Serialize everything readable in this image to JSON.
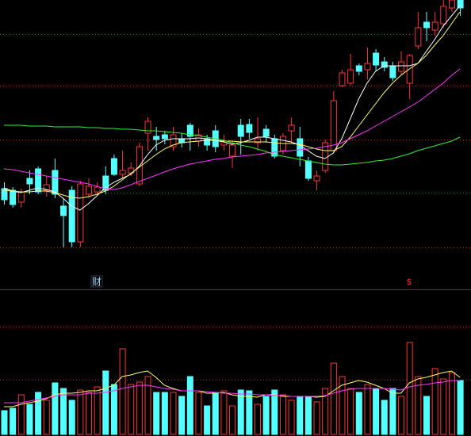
{
  "chart_data": [
    {
      "type": "candlestick",
      "ylim": [
        0,
        345
      ],
      "up_color": "#ff3232",
      "down_color": "#54ffff",
      "annotations": [
        {
          "text": "财",
          "color": "#9ad6ff"
        },
        {
          "text": "$",
          "color": "#ff3232"
        }
      ],
      "open": [
        107,
        105,
        90,
        120,
        132,
        105,
        130,
        85,
        105,
        40,
        100,
        103,
        123,
        145,
        125,
        127,
        113,
        177,
        173,
        175,
        160,
        170,
        187,
        167,
        170,
        180,
        162,
        148,
        187,
        188,
        165,
        182,
        170,
        155,
        180,
        170,
        142,
        117,
        130,
        155,
        237,
        240,
        262,
        257,
        278,
        267,
        262,
        255,
        240,
        287,
        317,
        307,
        315,
        335,
        345
      ],
      "high": [
        115,
        109,
        107,
        130,
        135,
        123,
        145,
        95,
        110,
        117,
        120,
        115,
        135,
        150,
        155,
        140,
        165,
        197,
        185,
        180,
        185,
        177,
        190,
        183,
        175,
        187,
        175,
        167,
        195,
        195,
        197,
        187,
        175,
        177,
        197,
        185,
        147,
        130,
        169,
        230,
        257,
        277,
        265,
        285,
        283,
        273,
        267,
        280,
        277,
        330,
        330,
        330,
        345,
        345,
        345
      ],
      "low": [
        87,
        83,
        83,
        100,
        100,
        97,
        95,
        33,
        33,
        33,
        95,
        99,
        100,
        123,
        120,
        123,
        110,
        155,
        155,
        163,
        155,
        159,
        155,
        160,
        155,
        153,
        155,
        133,
        150,
        170,
        155,
        165,
        145,
        150,
        165,
        135,
        117,
        105,
        127,
        153,
        235,
        237,
        250,
        245,
        255,
        255,
        243,
        250,
        220,
        283,
        293,
        300,
        310,
        330,
        325
      ],
      "close": [
        93,
        87,
        103,
        113,
        103,
        112,
        100,
        73,
        40,
        113,
        110,
        109,
        105,
        125,
        130,
        133,
        160,
        192,
        169,
        170,
        175,
        165,
        173,
        175,
        162,
        160,
        167,
        162,
        173,
        178,
        170,
        173,
        148,
        173,
        187,
        148,
        120,
        123,
        165,
        218,
        253,
        257,
        255,
        265,
        263,
        260,
        247,
        267,
        275,
        310,
        310,
        317,
        337,
        345,
        335
      ],
      "series": [
        {
          "color": "#ffffff",
          "values": [
            108,
            104,
            102,
            105,
            108,
            106,
            103,
            95,
            85,
            80,
            88,
            98,
            108,
            115,
            120,
            125,
            135,
            150,
            162,
            168,
            170,
            170,
            170,
            171,
            170,
            168,
            166,
            163,
            165,
            168,
            172,
            172,
            170,
            168,
            166,
            162,
            155,
            148,
            145,
            152,
            170,
            195,
            220,
            240,
            255,
            262,
            262,
            262,
            262,
            265,
            280,
            295,
            312,
            325,
            338
          ]
        },
        {
          "color": "#ffff66",
          "values": [
            105,
            104,
            103,
            103,
            104,
            104,
            102,
            99,
            96,
            95,
            97,
            100,
            104,
            110,
            118,
            126,
            134,
            142,
            150,
            157,
            162,
            165,
            166,
            167,
            168,
            168,
            167,
            167,
            166,
            166,
            166,
            166,
            165,
            164,
            164,
            163,
            160,
            157,
            155,
            155,
            160,
            172,
            186,
            200,
            214,
            228,
            240,
            250,
            258,
            265,
            275,
            288,
            300,
            315,
            330
          ]
        },
        {
          "color": "#ff33ff",
          "values": [
            132,
            131,
            129,
            127,
            125,
            123,
            121,
            119,
            117,
            115,
            113,
            110,
            107,
            106,
            108,
            112,
            116,
            120,
            124,
            128,
            132,
            135,
            138,
            140,
            142,
            144,
            145,
            147,
            148,
            149,
            150,
            152,
            153,
            154,
            155,
            156,
            157,
            158,
            160,
            162,
            165,
            170,
            175,
            180,
            186,
            192,
            198,
            204,
            210,
            216,
            224,
            232,
            240,
            250,
            258
          ]
        },
        {
          "color": "#33ee33",
          "values": [
            187,
            187,
            187,
            186,
            186,
            186,
            185,
            185,
            185,
            185,
            184,
            184,
            183,
            183,
            182,
            182,
            181,
            180,
            180,
            179,
            178,
            177,
            175,
            174,
            172,
            170,
            168,
            165,
            162,
            160,
            157,
            154,
            150,
            148,
            146,
            144,
            142,
            140,
            138,
            137,
            137,
            138,
            139,
            140,
            142,
            143,
            145,
            148,
            151,
            155,
            158,
            161,
            164,
            167,
            172
          ]
        }
      ]
    },
    {
      "type": "bar",
      "ylim": [
        0,
        183
      ],
      "values": [
        30,
        33,
        50,
        38,
        53,
        43,
        65,
        58,
        43,
        56,
        53,
        60,
        80,
        63,
        108,
        63,
        66,
        73,
        53,
        53,
        53,
        48,
        73,
        53,
        36,
        53,
        55,
        36,
        56,
        55,
        38,
        48,
        56,
        50,
        43,
        48,
        48,
        41,
        58,
        90,
        73,
        58,
        53,
        63,
        58,
        43,
        58,
        48,
        116,
        73,
        48,
        83,
        70,
        78,
        68
      ],
      "series": [
        {
          "color": "#ffff66",
          "values": [
            35,
            35,
            38,
            40,
            42,
            45,
            50,
            52,
            52,
            53,
            55,
            55,
            58,
            62,
            73,
            75,
            78,
            80,
            72,
            62,
            58,
            55,
            55,
            55,
            52,
            52,
            53,
            50,
            48,
            48,
            47,
            50,
            50,
            48,
            48,
            48,
            48,
            47,
            48,
            55,
            62,
            65,
            68,
            66,
            62,
            58,
            52,
            52,
            65,
            70,
            72,
            75,
            78,
            80,
            72
          ]
        },
        {
          "color": "#ff33ff",
          "values": [
            40,
            40,
            40,
            42,
            44,
            46,
            48,
            50,
            50,
            50,
            52,
            52,
            53,
            55,
            58,
            60,
            62,
            62,
            60,
            58,
            57,
            55,
            55,
            55,
            54,
            53,
            52,
            52,
            51,
            51,
            50,
            50,
            49,
            49,
            48,
            48,
            48,
            48,
            49,
            52,
            55,
            57,
            58,
            58,
            58,
            58,
            57,
            56,
            60,
            62,
            63,
            65,
            66,
            68,
            68
          ]
        }
      ]
    }
  ]
}
